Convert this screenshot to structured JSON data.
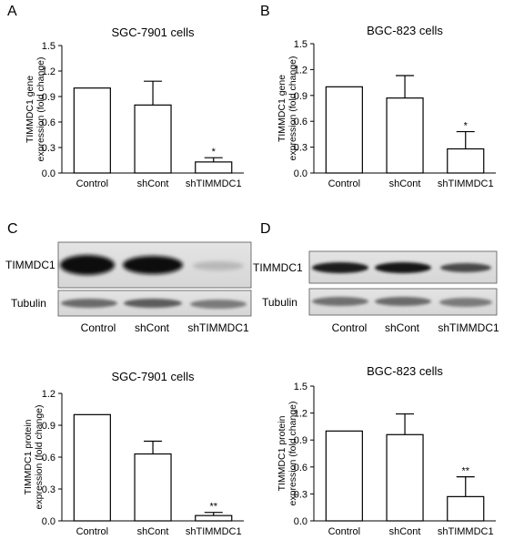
{
  "panel_labels": {
    "A": "A",
    "B": "B",
    "C": "C",
    "D": "D"
  },
  "blots": {
    "C": {
      "row_labels": [
        "TIMMDC1",
        "Tubulin"
      ],
      "lanes": [
        "Control",
        "shCont",
        "shTIMMDC1"
      ]
    },
    "D": {
      "row_labels": [
        "TIMMDC1",
        "Tubulin"
      ],
      "lanes": [
        "Control",
        "shCont",
        "shTIMMDC1"
      ]
    }
  },
  "chart_data": [
    {
      "id": "A",
      "type": "bar",
      "title": "SGC-7901 cells",
      "ylabel_lines": [
        "TIMMDC1 gene",
        "expression (fold change)"
      ],
      "categories": [
        "Control",
        "shCont",
        "shTIMMDC1"
      ],
      "values": [
        1.0,
        0.8,
        0.13
      ],
      "errors": [
        0,
        0.28,
        0.05
      ],
      "significance": [
        "",
        "",
        "*"
      ],
      "yticks": [
        "0.0",
        "0.3",
        "0.6",
        "0.9",
        "1.2",
        "1.5"
      ],
      "ylim": [
        0,
        1.5
      ]
    },
    {
      "id": "B",
      "type": "bar",
      "title": "BGC-823 cells",
      "ylabel_lines": [
        "TIMMDC1 gene",
        "expression (fold change)"
      ],
      "categories": [
        "Control",
        "shCont",
        "shTIMMDC1"
      ],
      "values": [
        1.0,
        0.87,
        0.28
      ],
      "errors": [
        0,
        0.26,
        0.2
      ],
      "significance": [
        "",
        "",
        "*"
      ],
      "yticks": [
        "0.0",
        "0.3",
        "0.6",
        "0.9",
        "1.2",
        "1.5"
      ],
      "ylim": [
        0,
        1.5
      ]
    },
    {
      "id": "C",
      "type": "bar",
      "title": "SGC-7901 cells",
      "ylabel_lines": [
        "TIMMDC1 protein",
        "expression (fold change)"
      ],
      "categories": [
        "Control",
        "shCont",
        "shTIMMDC1"
      ],
      "values": [
        1.0,
        0.63,
        0.05
      ],
      "errors": [
        0,
        0.12,
        0.03
      ],
      "significance": [
        "",
        "",
        "**"
      ],
      "yticks": [
        "0.0",
        "0.3",
        "0.6",
        "0.9",
        "1.2"
      ],
      "ylim": [
        0,
        1.2
      ]
    },
    {
      "id": "D",
      "type": "bar",
      "title": "BGC-823 cells",
      "ylabel_lines": [
        "TIMMDC1 protein",
        "expression (fold change)"
      ],
      "categories": [
        "Control",
        "shCont",
        "shTIMMDC1"
      ],
      "values": [
        1.0,
        0.96,
        0.27
      ],
      "errors": [
        0,
        0.23,
        0.22
      ],
      "significance": [
        "",
        "",
        "**"
      ],
      "yticks": [
        "0.0",
        "0.3",
        "0.6",
        "0.9",
        "1.2",
        "1.5"
      ],
      "ylim": [
        0,
        1.5
      ]
    }
  ]
}
